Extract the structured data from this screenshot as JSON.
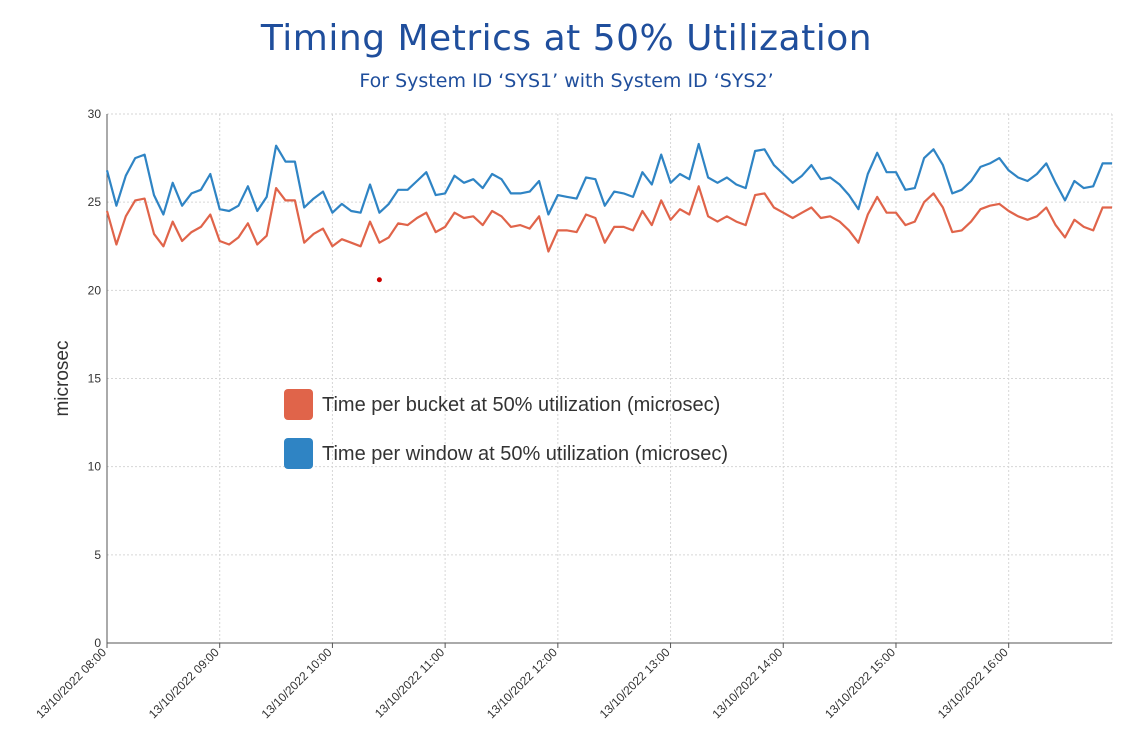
{
  "header": {
    "title": "Timing Metrics at 50% Utilization",
    "subtitle": "For System ID ‘SYS1’ with System ID ‘SYS2’"
  },
  "chart_data": {
    "type": "line",
    "title": "Timing Metrics at 50% Utilization",
    "subtitle": "For System ID ‘SYS1’ with System ID ‘SYS2’",
    "xlabel": "",
    "ylabel": "microsec",
    "ylim": [
      0,
      30
    ],
    "yticks": [
      0,
      5,
      10,
      15,
      20,
      25,
      30
    ],
    "xlim": [
      "13/10/2022 08:00",
      "13/10/2022 16:55"
    ],
    "xticks": [
      "13/10/2022 08:00",
      "13/10/2022 09:00",
      "13/10/2022 10:00",
      "13/10/2022 11:00",
      "13/10/2022 12:00",
      "13/10/2022 13:00",
      "13/10/2022 14:00",
      "13/10/2022 15:00",
      "13/10/2022 16:00"
    ],
    "x_interval": "5 min",
    "grid": true,
    "legend_position": "center-left",
    "series": [
      {
        "name": "Time per bucket at 50% utilization (microsec)",
        "color": "#e0644a",
        "values": [
          24.5,
          22.6,
          24.2,
          25.1,
          25.2,
          23.2,
          22.5,
          23.9,
          22.8,
          23.3,
          23.6,
          24.3,
          22.8,
          22.6,
          23.0,
          23.8,
          22.6,
          23.1,
          25.8,
          25.1,
          25.1,
          22.7,
          23.2,
          23.5,
          22.5,
          22.9,
          22.7,
          22.5,
          23.9,
          22.7,
          23.0,
          23.8,
          23.7,
          24.1,
          24.4,
          23.3,
          23.6,
          24.4,
          24.1,
          24.2,
          23.7,
          24.5,
          24.2,
          23.6,
          23.7,
          23.5,
          24.2,
          22.2,
          23.4,
          23.4,
          23.3,
          24.3,
          24.1,
          22.7,
          23.6,
          23.6,
          23.4,
          24.5,
          23.7,
          25.1,
          24.0,
          24.6,
          24.3,
          25.9,
          24.2,
          23.9,
          24.2,
          23.9,
          23.7,
          25.4,
          25.5,
          24.7,
          24.4,
          24.1,
          24.4,
          24.7,
          24.1,
          24.2,
          23.9,
          23.4,
          22.7,
          24.3,
          25.3,
          24.4,
          24.4,
          23.7,
          23.9,
          25.0,
          25.5,
          24.7,
          23.3,
          23.4,
          23.9,
          24.6,
          24.8,
          24.9,
          24.5,
          24.2,
          24.0,
          24.2,
          24.7,
          23.7,
          23.0,
          24.0,
          23.6,
          23.4,
          24.7,
          24.7
        ]
      },
      {
        "name": "Time per window at 50% utilization (microsec)",
        "color": "#2f84c4",
        "values": [
          26.8,
          24.8,
          26.5,
          27.5,
          27.7,
          25.4,
          24.3,
          26.1,
          24.8,
          25.5,
          25.7,
          26.6,
          24.6,
          24.5,
          24.8,
          25.9,
          24.5,
          25.3,
          28.2,
          27.3,
          27.3,
          24.7,
          25.2,
          25.6,
          24.4,
          24.9,
          24.5,
          24.4,
          26.0,
          24.4,
          24.9,
          25.7,
          25.7,
          26.2,
          26.7,
          25.4,
          25.5,
          26.5,
          26.1,
          26.3,
          25.8,
          26.6,
          26.3,
          25.5,
          25.5,
          25.6,
          26.2,
          24.3,
          25.4,
          25.3,
          25.2,
          26.4,
          26.3,
          24.8,
          25.6,
          25.5,
          25.3,
          26.7,
          26.0,
          27.7,
          26.1,
          26.6,
          26.3,
          28.3,
          26.4,
          26.1,
          26.4,
          26.0,
          25.8,
          27.9,
          28.0,
          27.1,
          26.6,
          26.1,
          26.5,
          27.1,
          26.3,
          26.4,
          26.0,
          25.4,
          24.6,
          26.6,
          27.8,
          26.7,
          26.7,
          25.7,
          25.8,
          27.5,
          28.0,
          27.1,
          25.5,
          25.7,
          26.2,
          27.0,
          27.2,
          27.5,
          26.8,
          26.4,
          26.2,
          26.6,
          27.2,
          26.1,
          25.1,
          26.2,
          25.8,
          25.9,
          27.2,
          27.2
        ]
      }
    ],
    "annotations": [
      {
        "type": "point",
        "x": "13/10/2022 10:25",
        "y": 20.6,
        "color": "#cc0000"
      }
    ]
  }
}
